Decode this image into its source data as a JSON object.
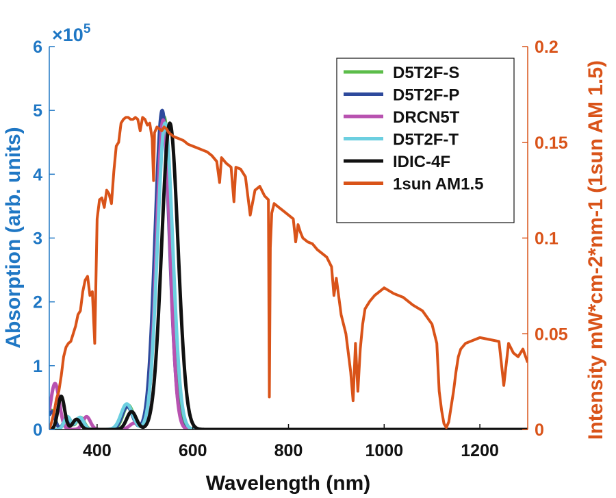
{
  "chart_data": {
    "type": "line",
    "title": "",
    "xlabel": "Wavelength (nm)",
    "ylabel_left": "Absorption (arb. units)",
    "ylabel_right": "Intensity  mW*cm-2*nm-1 (1sun AM 1.5)",
    "left_multiplier_base": "×10",
    "left_multiplier_exp": "5",
    "xlim": [
      300,
      1300
    ],
    "ylim_left": [
      0,
      600000
    ],
    "ylim_right": [
      0,
      0.2
    ],
    "xticks": [
      400,
      600,
      800,
      1000,
      1200
    ],
    "xtick_labels": [
      "400",
      "600",
      "800",
      "1000",
      "1200"
    ],
    "yticks_left": [
      0,
      100000,
      200000,
      300000,
      400000,
      500000,
      600000
    ],
    "ytick_labels_left": [
      "0",
      "1",
      "2",
      "3",
      "4",
      "5",
      "6"
    ],
    "yticks_right": [
      0,
      0.05,
      0.1,
      0.15,
      0.2
    ],
    "ytick_labels_right": [
      "0",
      "0.05",
      "0.1",
      "0.15",
      "0.2"
    ],
    "grid": false,
    "legend_position": "top-right",
    "colors": {
      "left_axis": "#1f77c4",
      "right_axis": "#d95319"
    },
    "absorption_series": [
      {
        "name": "D5T2F-S",
        "color": "#5cbd4a",
        "peaks": [
          {
            "center": 540,
            "height": 490000,
            "width": 15
          },
          {
            "center": 465,
            "height": 38000,
            "width": 11
          },
          {
            "center": 365,
            "height": 19000,
            "width": 8
          },
          {
            "center": 338,
            "height": 20000,
            "width": 7
          },
          {
            "center": 305,
            "height": 30000,
            "width": 7
          }
        ]
      },
      {
        "name": "D5T2F-P",
        "color": "#2e4a9c",
        "peaks": [
          {
            "center": 536,
            "height": 500000,
            "width": 15
          },
          {
            "center": 463,
            "height": 36000,
            "width": 11
          },
          {
            "center": 363,
            "height": 18000,
            "width": 8
          },
          {
            "center": 337,
            "height": 18000,
            "width": 7
          },
          {
            "center": 305,
            "height": 28000,
            "width": 7
          }
        ]
      },
      {
        "name": "DRCN5T",
        "color": "#b852b0",
        "peaks": [
          {
            "center": 538,
            "height": 485000,
            "width": 14
          },
          {
            "center": 378,
            "height": 20000,
            "width": 8
          },
          {
            "center": 312,
            "height": 72000,
            "width": 9
          },
          {
            "center": 478,
            "height": 10000,
            "width": 10
          }
        ]
      },
      {
        "name": "D5T2F-T",
        "color": "#6ccfe0",
        "peaks": [
          {
            "center": 542,
            "height": 480000,
            "width": 16
          },
          {
            "center": 462,
            "height": 40000,
            "width": 12
          },
          {
            "center": 364,
            "height": 19000,
            "width": 8
          },
          {
            "center": 338,
            "height": 20000,
            "width": 7
          }
        ]
      },
      {
        "name": "IDIC-4F",
        "color": "#111111",
        "peaks": [
          {
            "center": 552,
            "height": 480000,
            "width": 17
          },
          {
            "center": 472,
            "height": 28000,
            "width": 10
          },
          {
            "center": 357,
            "height": 16000,
            "width": 8
          },
          {
            "center": 325,
            "height": 52000,
            "width": 7
          }
        ]
      }
    ],
    "solar_series": {
      "name": "1sun AM1.5",
      "color": "#d95319",
      "x": [
        300,
        305,
        310,
        315,
        320,
        325,
        330,
        335,
        340,
        345,
        350,
        355,
        360,
        365,
        370,
        375,
        380,
        385,
        390,
        395,
        400,
        405,
        410,
        415,
        420,
        425,
        430,
        435,
        440,
        445,
        450,
        455,
        460,
        465,
        470,
        475,
        480,
        485,
        490,
        495,
        500,
        505,
        510,
        515,
        518,
        520,
        525,
        530,
        535,
        540,
        545,
        550,
        560,
        570,
        580,
        590,
        600,
        610,
        620,
        630,
        640,
        650,
        656,
        660,
        670,
        680,
        686,
        690,
        700,
        710,
        720,
        730,
        740,
        750,
        758,
        760,
        762,
        765,
        770,
        780,
        790,
        800,
        810,
        815,
        820,
        825,
        830,
        840,
        850,
        860,
        870,
        880,
        890,
        895,
        900,
        910,
        920,
        930,
        935,
        940,
        945,
        950,
        955,
        960,
        970,
        980,
        990,
        1000,
        1020,
        1040,
        1060,
        1080,
        1100,
        1110,
        1115,
        1120,
        1125,
        1130,
        1135,
        1140,
        1145,
        1150,
        1155,
        1160,
        1170,
        1180,
        1190,
        1200,
        1220,
        1240,
        1250,
        1260,
        1270,
        1280,
        1290,
        1300
      ],
      "y": [
        0.0,
        0.004,
        0.009,
        0.016,
        0.02,
        0.028,
        0.038,
        0.043,
        0.045,
        0.046,
        0.05,
        0.054,
        0.06,
        0.062,
        0.072,
        0.078,
        0.08,
        0.07,
        0.072,
        0.045,
        0.11,
        0.12,
        0.121,
        0.116,
        0.125,
        0.123,
        0.118,
        0.135,
        0.148,
        0.15,
        0.16,
        0.162,
        0.163,
        0.163,
        0.162,
        0.162,
        0.163,
        0.162,
        0.156,
        0.163,
        0.162,
        0.159,
        0.16,
        0.152,
        0.13,
        0.155,
        0.158,
        0.157,
        0.156,
        0.158,
        0.157,
        0.155,
        0.153,
        0.152,
        0.151,
        0.149,
        0.148,
        0.147,
        0.146,
        0.145,
        0.143,
        0.14,
        0.129,
        0.142,
        0.139,
        0.137,
        0.119,
        0.137,
        0.136,
        0.132,
        0.112,
        0.125,
        0.127,
        0.122,
        0.12,
        0.017,
        0.095,
        0.113,
        0.118,
        0.116,
        0.114,
        0.112,
        0.11,
        0.098,
        0.107,
        0.103,
        0.1,
        0.098,
        0.097,
        0.094,
        0.092,
        0.09,
        0.085,
        0.07,
        0.079,
        0.06,
        0.05,
        0.03,
        0.015,
        0.045,
        0.02,
        0.042,
        0.055,
        0.063,
        0.067,
        0.07,
        0.072,
        0.074,
        0.071,
        0.069,
        0.065,
        0.062,
        0.055,
        0.045,
        0.02,
        0.01,
        0.003,
        0.001,
        0.004,
        0.012,
        0.02,
        0.03,
        0.038,
        0.042,
        0.045,
        0.046,
        0.047,
        0.048,
        0.047,
        0.046,
        0.023,
        0.045,
        0.04,
        0.038,
        0.042,
        0.035
      ]
    }
  }
}
